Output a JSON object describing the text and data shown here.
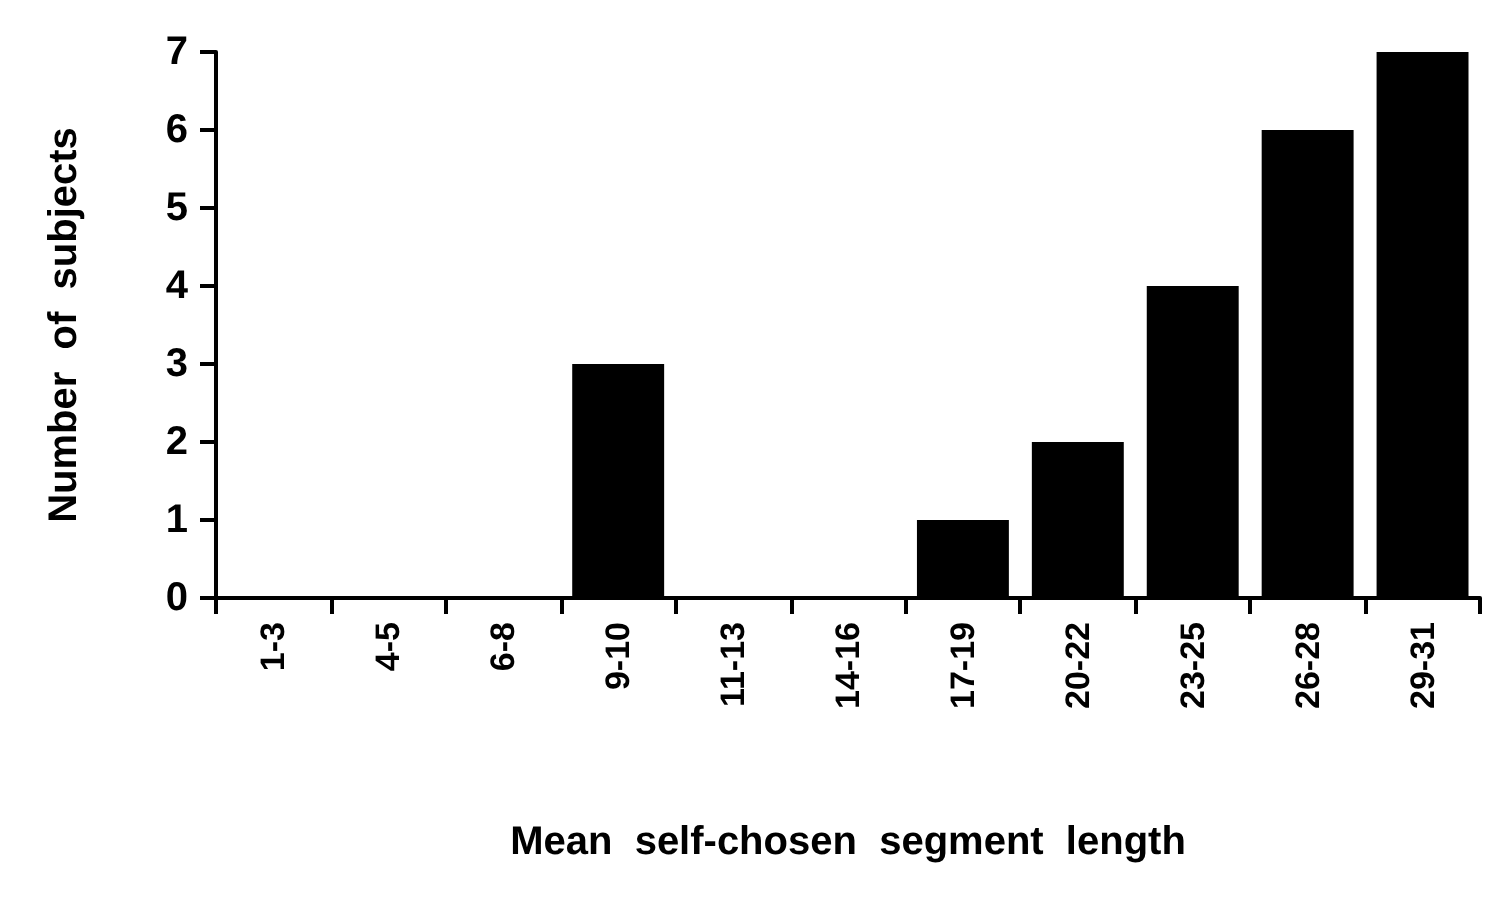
{
  "chart_data": {
    "type": "bar",
    "xlabel": "Mean  self-chosen  segment  length",
    "ylabel": "Number  of  subjects",
    "categories": [
      "1-3",
      "4-5",
      "6-8",
      "9-10",
      "11-13",
      "14-16",
      "17-19",
      "20-22",
      "23-25",
      "26-28",
      "29-31"
    ],
    "values": [
      0,
      0,
      0,
      3,
      0,
      0,
      1,
      2,
      4,
      6,
      7
    ],
    "color": "#000000",
    "ylim": [
      0,
      7
    ],
    "yticks": [
      0,
      1,
      2,
      3,
      4,
      5,
      6,
      7
    ],
    "grid": false
  }
}
